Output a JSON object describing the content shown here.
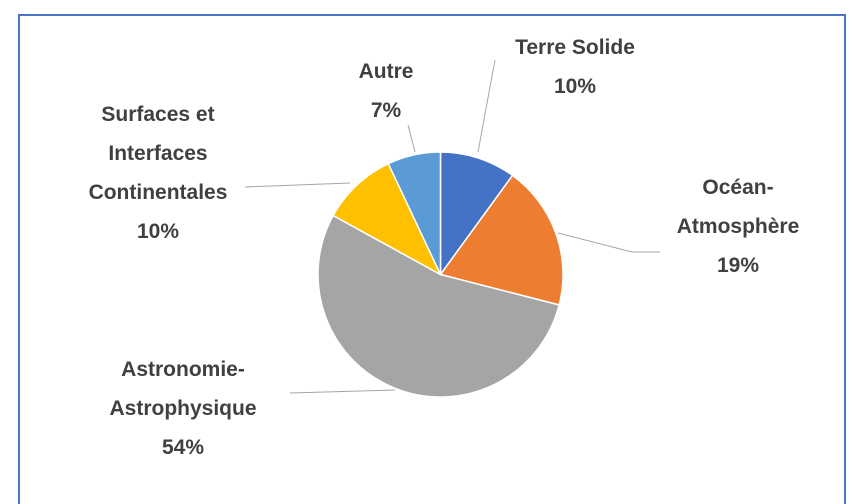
{
  "chart_data": {
    "type": "pie",
    "categories": [
      "Terre Solide",
      "Océan-Atmosphère",
      "Astronomie-Astrophysique",
      "Surfaces et Interfaces Continentales",
      "Autre"
    ],
    "values": [
      10,
      19,
      54,
      10,
      7
    ],
    "value_labels": [
      "10%",
      "19%",
      "54%",
      "10%",
      "7%"
    ],
    "colors": [
      "#4472c4",
      "#ed7d31",
      "#a5a5a5",
      "#ffc000",
      "#5b9bd5"
    ]
  }
}
